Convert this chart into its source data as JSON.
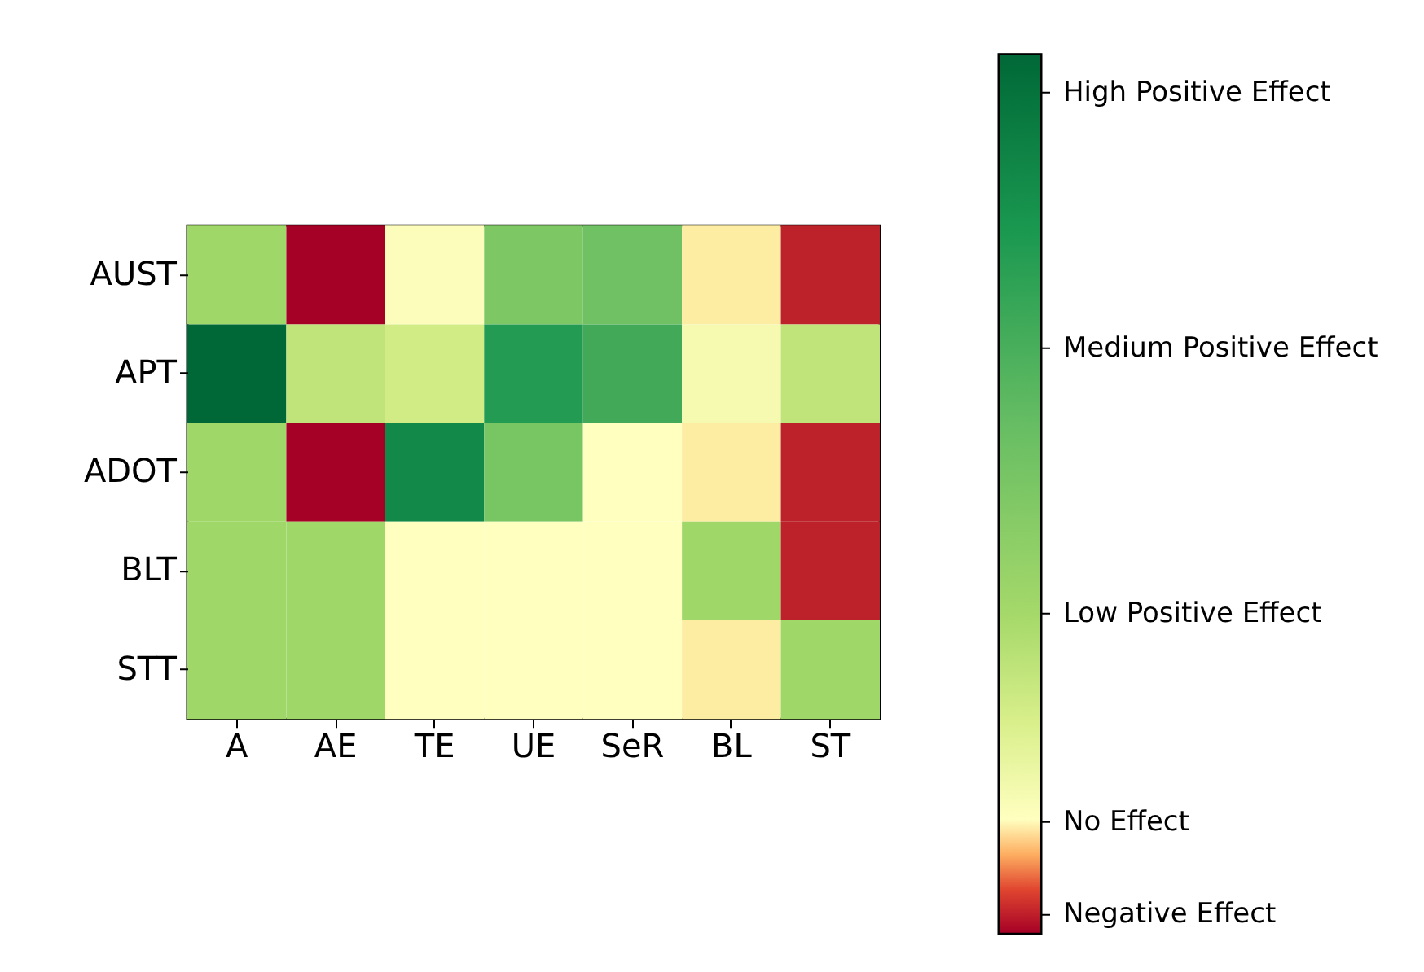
{
  "chart_data": {
    "type": "heatmap",
    "categories": [
      "A",
      "AE",
      "TE",
      "UE",
      "SeR",
      "BL",
      "ST"
    ],
    "y_categories": [
      "AUST",
      "APT",
      "ADOT",
      "BLT",
      "STT"
    ],
    "cells": [
      [
        38,
        0,
        14,
        50,
        55,
        12,
        2
      ],
      [
        100,
        30,
        26,
        78,
        70,
        16,
        30
      ],
      [
        38,
        0,
        86,
        52,
        13,
        12,
        2
      ],
      [
        38,
        38,
        13,
        13,
        13,
        38,
        2
      ],
      [
        38,
        38,
        13,
        13,
        13,
        12,
        38
      ]
    ],
    "clim": [
      0,
      100
    ],
    "cticks": [
      {
        "value": 2.3,
        "label": "Negative Effect"
      },
      {
        "value": 12.8,
        "label": "No Effect"
      },
      {
        "value": 36.5,
        "label": "Low Positive Effect"
      },
      {
        "value": 66.6,
        "label": "Medium Positive Effect"
      },
      {
        "value": 95.7,
        "label": "High Positive Effect"
      }
    ]
  }
}
